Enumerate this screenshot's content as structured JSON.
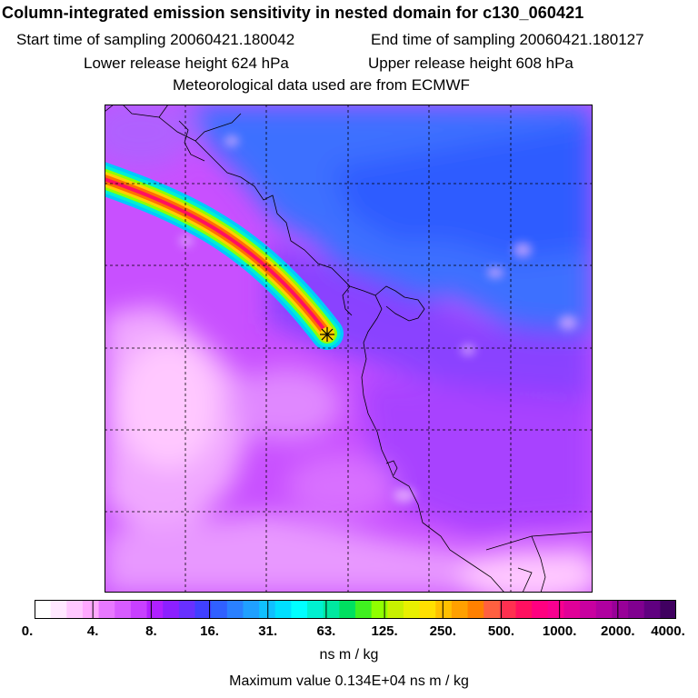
{
  "title": "Column-integrated emission sensitivity in nested domain for c130_060421",
  "sampling": {
    "start": "Start time of sampling 20060421.180042",
    "end": "End time of sampling 20060421.180127"
  },
  "release": {
    "lower": "Lower release height  624 hPa",
    "upper": "Upper release height  608 hPa"
  },
  "met_source": "Meteorological data used are from ECMWF",
  "colorbar": {
    "ticks": [
      "0.",
      "4.",
      "8.",
      "16.",
      "31.",
      "63.",
      "125.",
      "250.",
      "500.",
      "1000.",
      "2000.",
      "4000."
    ],
    "colors": [
      "#ffffff",
      "#ffe8ff",
      "#ffc8ff",
      "#ffa8ff",
      "#e878ff",
      "#d85cff",
      "#c840ff",
      "#b020ff",
      "#8c20ff",
      "#6830ff",
      "#4040ff",
      "#3060ff",
      "#2a80ff",
      "#20a0ff",
      "#10c0ff",
      "#00e0ff",
      "#00ffff",
      "#00f0d0",
      "#00e8a0",
      "#00e060",
      "#40f020",
      "#90ff00",
      "#c8f000",
      "#e8f000",
      "#ffe000",
      "#ffc000",
      "#ffa000",
      "#ff8000",
      "#ff6040",
      "#ff3050",
      "#ff1060",
      "#ff0080",
      "#f80090",
      "#e00098",
      "#c800a0",
      "#b000a0",
      "#980098",
      "#800090",
      "#600080",
      "#400060"
    ],
    "unit": "ns m / kg"
  },
  "max_value": "Maximum value  0.134E+04 ns m / kg",
  "map": {
    "release_marker": "release-point-star",
    "colors": {
      "bright": "#ffc8ff",
      "light": "#f0a8ff",
      "mid": "#d870ff",
      "base": "#c850ff",
      "dark": "#a040ff",
      "violet": "#7a40ff",
      "blue": "#3c70ff",
      "deepblue": "#2f5cff",
      "coast": "#000000",
      "grid": "#000000"
    }
  }
}
